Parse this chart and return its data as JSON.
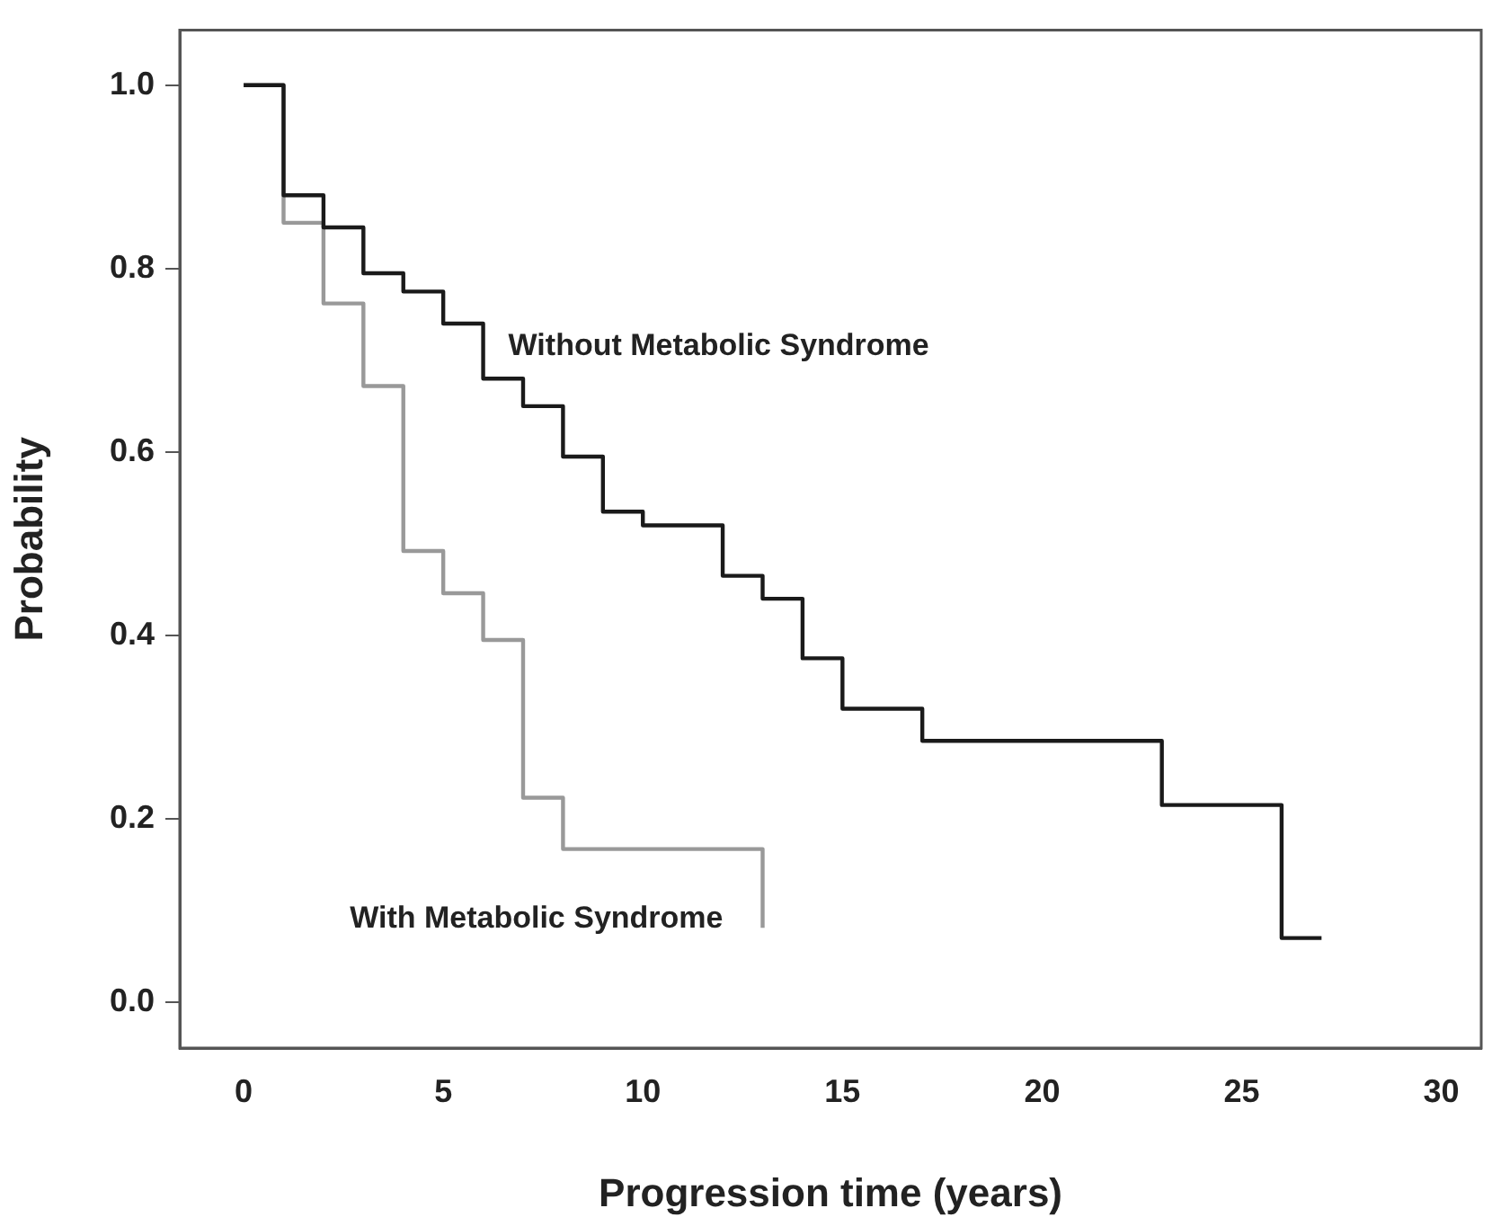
{
  "chart_data": {
    "type": "step",
    "xlabel": "Progression time (years)",
    "ylabel": "Probability",
    "xlim": [
      -1.6,
      31
    ],
    "ylim": [
      -0.05,
      1.06
    ],
    "xticks": [
      0,
      5,
      10,
      15,
      20,
      25,
      30
    ],
    "yticks": [
      {
        "value": 0,
        "label": "0.0"
      },
      {
        "value": 0.2,
        "label": "0.2"
      },
      {
        "value": 0.4,
        "label": "0.4"
      },
      {
        "value": 0.6,
        "label": "0.6"
      },
      {
        "value": 0.8,
        "label": "0.8"
      },
      {
        "value": 1,
        "label": "1.0"
      }
    ],
    "grid": false,
    "legend": false,
    "marker": "none",
    "line_style": "solid",
    "series": [
      {
        "name": "Without Metabolic Syndrome",
        "color": "#1a1a1a",
        "x": [
          0,
          1,
          2,
          3,
          4,
          5,
          6,
          7,
          8,
          9,
          10,
          12,
          13,
          14,
          15,
          17,
          23,
          26,
          27
        ],
        "values": [
          1,
          0.88,
          0.845,
          0.795,
          0.775,
          0.74,
          0.68,
          0.65,
          0.595,
          0.535,
          0.52,
          0.465,
          0.44,
          0.375,
          0.32,
          0.285,
          0.215,
          0.07,
          0.07
        ]
      },
      {
        "name": "With Metabolic Syndrome",
        "color": "#999999",
        "x": [
          0,
          1,
          2,
          3,
          4,
          5,
          6,
          7,
          8,
          13,
          13
        ],
        "values": [
          1,
          0.85,
          0.762,
          0.672,
          0.492,
          0.446,
          0.395,
          0.223,
          0.167,
          0.081,
          0.081
        ]
      }
    ]
  }
}
